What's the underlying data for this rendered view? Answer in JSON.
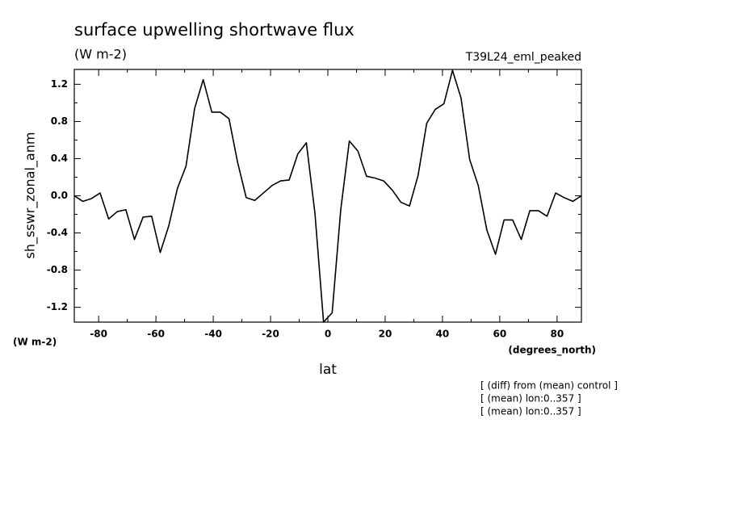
{
  "chart_data": {
    "type": "line",
    "title": "surface upwelling shortwave flux",
    "subtitle": "(W m-2)",
    "experiment": "T39L24_eml_peaked",
    "y_label": "sh_sswr_zonal_anm",
    "y_units": "(W m-2)",
    "x_label": "lat",
    "x_units": "(degrees_north)",
    "notes": [
      "[ (diff) from (mean) control ]",
      "[ (mean) lon:0..357 ]",
      "[ (mean) lon:0..357 ]"
    ],
    "x": [
      -88.5,
      -85.5,
      -82.5,
      -79.5,
      -76.5,
      -73.5,
      -70.5,
      -67.5,
      -64.5,
      -61.5,
      -58.5,
      -55.5,
      -52.5,
      -49.5,
      -46.5,
      -43.5,
      -40.5,
      -37.5,
      -34.5,
      -31.5,
      -28.5,
      -25.5,
      -22.5,
      -19.5,
      -16.5,
      -13.5,
      -10.5,
      -7.5,
      -4.5,
      -1.5,
      1.5,
      4.5,
      7.5,
      10.5,
      13.5,
      16.5,
      19.5,
      22.5,
      25.5,
      28.5,
      31.5,
      34.5,
      37.5,
      40.5,
      43.5,
      46.5,
      49.5,
      52.5,
      55.5,
      58.5,
      61.5,
      64.5,
      67.5,
      70.5,
      73.5,
      76.5,
      79.5,
      82.5,
      85.5,
      88.5
    ],
    "series": [
      {
        "name": "sh_sswr_zonal_anm",
        "color": "#000000",
        "values": [
          0.0,
          -0.06,
          -0.03,
          0.03,
          -0.25,
          -0.17,
          -0.15,
          -0.47,
          -0.23,
          -0.22,
          -0.61,
          -0.32,
          0.08,
          0.32,
          0.94,
          1.25,
          0.9,
          0.9,
          0.83,
          0.36,
          -0.02,
          -0.05,
          0.03,
          0.11,
          0.16,
          0.17,
          0.45,
          0.57,
          -0.19,
          -1.36,
          -1.26,
          -0.15,
          0.59,
          0.48,
          0.21,
          0.19,
          0.16,
          0.06,
          -0.07,
          -0.11,
          0.22,
          0.78,
          0.93,
          0.99,
          1.35,
          1.05,
          0.39,
          0.11,
          -0.37,
          -0.63,
          -0.26,
          -0.26,
          -0.47,
          -0.16,
          -0.16,
          -0.22,
          0.03,
          -0.02,
          -0.06,
          0.0
        ]
      }
    ],
    "xlim": [
      -88.5,
      88.5
    ],
    "ylim": [
      -1.36,
      1.36
    ],
    "xticks": [
      -80,
      -60,
      -40,
      -20,
      0,
      20,
      40,
      60,
      80
    ],
    "xminorticks": [
      -70,
      -50,
      -30,
      -10,
      10,
      30,
      50,
      70
    ],
    "yticks": [
      -1.2,
      -0.8,
      -0.4,
      {
        "value": 0,
        "label": "0.0"
      },
      0.4,
      0.8,
      1.2
    ],
    "yminorticks": [
      -1.0,
      -0.6,
      -0.2,
      0.2,
      0.6,
      1.0
    ],
    "grid": false
  }
}
